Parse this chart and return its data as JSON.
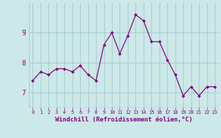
{
  "x": [
    0,
    1,
    2,
    3,
    4,
    5,
    6,
    7,
    8,
    9,
    10,
    11,
    12,
    13,
    14,
    15,
    16,
    17,
    18,
    19,
    20,
    21,
    22,
    23
  ],
  "y": [
    7.4,
    7.7,
    7.6,
    7.8,
    7.8,
    7.7,
    7.9,
    7.6,
    7.4,
    8.6,
    9.0,
    8.3,
    8.9,
    9.6,
    9.4,
    8.7,
    8.7,
    8.1,
    7.6,
    6.9,
    7.2,
    6.9,
    7.2,
    7.2
  ],
  "line_color": "#800080",
  "marker": "D",
  "marker_size": 2.0,
  "bg_color": "#cce8e8",
  "grid_color": "#aacfcf",
  "xlabel": "Windchill (Refroidissement éolien,°C)",
  "xlabel_color": "#800080",
  "tick_color": "#800080",
  "ylim": [
    6.5,
    10.0
  ],
  "xlim": [
    -0.5,
    23.5
  ],
  "yticks": [
    7,
    8,
    9
  ],
  "xticks": [
    0,
    1,
    2,
    3,
    4,
    5,
    6,
    7,
    8,
    9,
    10,
    11,
    12,
    13,
    14,
    15,
    16,
    17,
    18,
    19,
    20,
    21,
    22,
    23
  ],
  "title": ""
}
